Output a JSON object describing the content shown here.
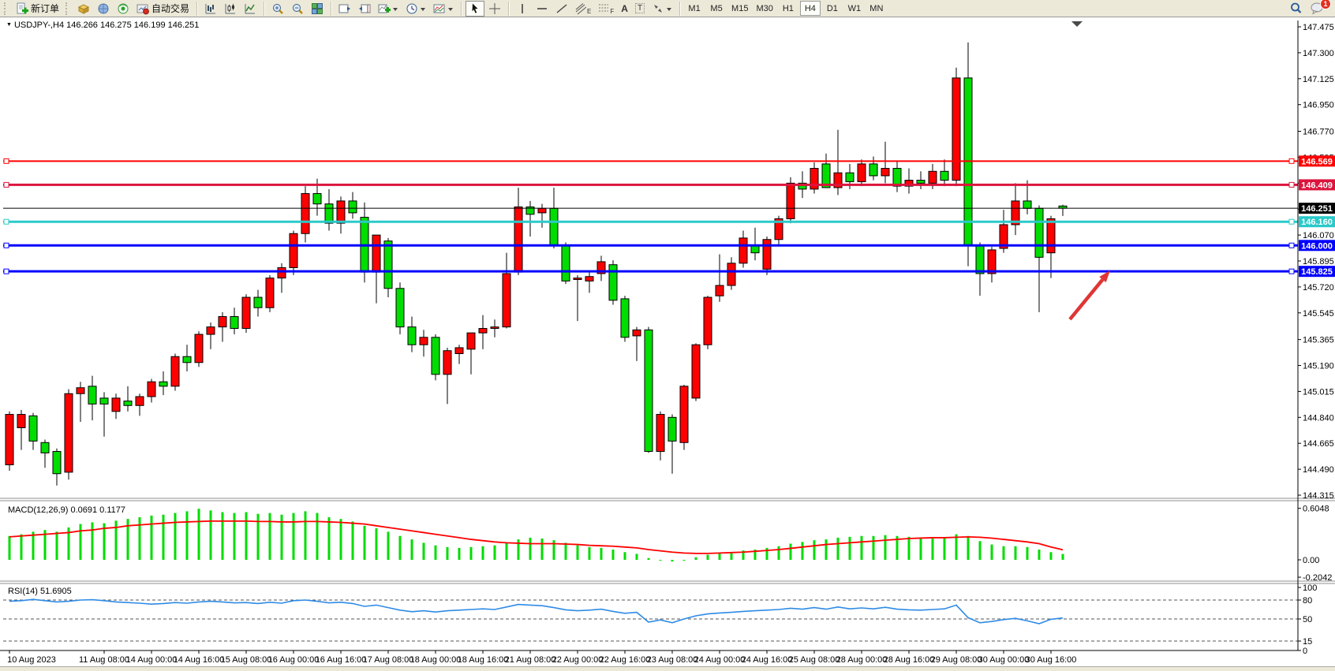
{
  "toolbar": {
    "new_order_label": "新订单",
    "autotrading_label": "自动交易",
    "timeframes": [
      "M1",
      "M5",
      "M15",
      "M30",
      "H1",
      "H4",
      "D1",
      "W1",
      "MN"
    ],
    "active_timeframe": "H4",
    "notification_count": "1",
    "glyphs": {
      "channel": "E",
      "fibo": "F",
      "text": "A",
      "label": "T"
    }
  },
  "chart_window": {
    "symbol_label": "USDJPY-,H4 146.266 146.275 146.199 146.251",
    "price_lines": [
      {
        "price": 146.569,
        "label": "146.569",
        "color": "#FF0000",
        "width": 2
      },
      {
        "price": 146.409,
        "label": "146.409",
        "color": "#DC143C",
        "width": 3
      },
      {
        "price": 146.251,
        "label": "146.251",
        "color": "#000000",
        "width": 1
      },
      {
        "price": 146.16,
        "label": "146.160",
        "color": "#2BC9C9",
        "width": 3
      },
      {
        "price": 146.0,
        "label": "146.000",
        "color": "#0000FF",
        "width": 3
      },
      {
        "price": 145.825,
        "label": "145.825",
        "color": "#0000FF",
        "width": 3
      }
    ],
    "y_ticks": [
      "147.475",
      "147.300",
      "147.125",
      "146.950",
      "146.770",
      "146.595",
      "146.420",
      "146.245",
      "146.070",
      "145.895",
      "145.720",
      "145.545",
      "145.365",
      "145.190",
      "145.015",
      "144.840",
      "144.665",
      "144.490",
      "144.315"
    ],
    "arrow": {
      "from": [
        1356,
        405
      ],
      "to": [
        1407,
        343
      ],
      "color": "#E03535"
    }
  },
  "chart_data": [
    {
      "type": "candlestick",
      "title": "USDJPY-,H4",
      "timeframe": "H4",
      "ylim": [
        144.315,
        147.475
      ],
      "up_color": "#FF0000",
      "down_color": "#00DD00",
      "x_tick_labels": [
        "10 Aug 2023",
        "11 Aug 08:00",
        "14 Aug 00:00",
        "14 Aug 16:00",
        "15 Aug 08:00",
        "16 Aug 00:00",
        "16 Aug 16:00",
        "17 Aug 08:00",
        "18 Aug 00:00",
        "18 Aug 16:00",
        "21 Aug 08:00",
        "22 Aug 00:00",
        "22 Aug 16:00",
        "23 Aug 08:00",
        "24 Aug 00:00",
        "24 Aug 16:00",
        "25 Aug 08:00",
        "28 Aug 00:00",
        "28 Aug 16:00",
        "29 Aug 08:00",
        "30 Aug 00:00",
        "30 Aug 16:00"
      ],
      "x_tick_indices": [
        0,
        8,
        12,
        16,
        20,
        24,
        28,
        32,
        36,
        40,
        44,
        48,
        52,
        56,
        60,
        64,
        68,
        72,
        76,
        80,
        84,
        88
      ],
      "ohlc": [
        [
          144.52,
          144.88,
          144.48,
          144.86
        ],
        [
          144.77,
          144.89,
          144.62,
          144.86
        ],
        [
          144.85,
          144.87,
          144.62,
          144.68
        ],
        [
          144.67,
          144.69,
          144.5,
          144.6
        ],
        [
          144.61,
          144.63,
          144.38,
          144.46
        ],
        [
          144.47,
          145.03,
          144.42,
          145.0
        ],
        [
          145.0,
          145.08,
          144.81,
          145.04
        ],
        [
          145.05,
          145.12,
          144.82,
          144.93
        ],
        [
          144.97,
          145.01,
          144.71,
          144.93
        ],
        [
          144.88,
          145.0,
          144.83,
          144.97
        ],
        [
          144.95,
          145.05,
          144.88,
          144.92
        ],
        [
          144.92,
          145.0,
          144.85,
          144.98
        ],
        [
          144.98,
          145.1,
          144.94,
          145.08
        ],
        [
          145.08,
          145.15,
          144.99,
          145.05
        ],
        [
          145.05,
          145.27,
          145.02,
          145.25
        ],
        [
          145.25,
          145.33,
          145.15,
          145.21
        ],
        [
          145.21,
          145.42,
          145.18,
          145.4
        ],
        [
          145.4,
          145.48,
          145.3,
          145.45
        ],
        [
          145.45,
          145.55,
          145.35,
          145.52
        ],
        [
          145.52,
          145.58,
          145.4,
          145.44
        ],
        [
          145.44,
          145.67,
          145.41,
          145.65
        ],
        [
          145.65,
          145.7,
          145.52,
          145.58
        ],
        [
          145.58,
          145.8,
          145.55,
          145.78
        ],
        [
          145.78,
          145.88,
          145.68,
          145.85
        ],
        [
          145.85,
          146.1,
          145.8,
          146.08
        ],
        [
          146.08,
          146.4,
          146.02,
          146.35
        ],
        [
          146.35,
          146.45,
          146.2,
          146.28
        ],
        [
          146.28,
          146.38,
          146.1,
          146.15
        ],
        [
          146.15,
          146.33,
          146.08,
          146.3
        ],
        [
          146.3,
          146.36,
          146.18,
          146.22
        ],
        [
          146.19,
          146.29,
          145.75,
          145.82
        ],
        [
          145.82,
          146.07,
          145.61,
          146.07
        ],
        [
          146.03,
          146.05,
          145.65,
          145.71
        ],
        [
          145.71,
          145.75,
          145.4,
          145.45
        ],
        [
          145.45,
          145.52,
          145.28,
          145.33
        ],
        [
          145.33,
          145.43,
          145.25,
          145.38
        ],
        [
          145.38,
          145.4,
          145.09,
          145.13
        ],
        [
          145.13,
          145.31,
          144.93,
          145.29
        ],
        [
          145.27,
          145.33,
          145.2,
          145.31
        ],
        [
          145.3,
          145.41,
          145.13,
          145.41
        ],
        [
          145.41,
          145.53,
          145.3,
          145.44
        ],
        [
          145.44,
          145.5,
          145.38,
          145.45
        ],
        [
          145.45,
          145.95,
          145.44,
          145.81
        ],
        [
          145.82,
          146.39,
          145.8,
          146.26
        ],
        [
          146.26,
          146.3,
          146.06,
          146.21
        ],
        [
          146.22,
          146.28,
          146.12,
          146.25
        ],
        [
          146.25,
          146.39,
          145.98,
          146.0
        ],
        [
          146.0,
          146.02,
          145.74,
          145.76
        ],
        [
          145.77,
          145.8,
          145.49,
          145.78
        ],
        [
          145.76,
          145.83,
          145.68,
          145.79
        ],
        [
          145.81,
          145.93,
          145.76,
          145.89
        ],
        [
          145.87,
          145.9,
          145.6,
          145.63
        ],
        [
          145.64,
          145.66,
          145.35,
          145.38
        ],
        [
          145.39,
          145.45,
          145.22,
          145.43
        ],
        [
          145.43,
          145.45,
          144.6,
          144.61
        ],
        [
          144.61,
          144.88,
          144.55,
          144.86
        ],
        [
          144.84,
          144.86,
          144.46,
          144.68
        ],
        [
          144.67,
          145.06,
          144.62,
          145.05
        ],
        [
          144.97,
          145.34,
          144.95,
          145.33
        ],
        [
          145.33,
          145.66,
          145.3,
          145.65
        ],
        [
          145.66,
          145.94,
          145.62,
          145.73
        ],
        [
          145.73,
          145.92,
          145.7,
          145.88
        ],
        [
          145.88,
          146.1,
          145.85,
          146.05
        ],
        [
          146.0,
          146.12,
          145.9,
          145.95
        ],
        [
          145.84,
          146.06,
          145.8,
          146.04
        ],
        [
          146.04,
          146.2,
          146.0,
          146.18
        ],
        [
          146.18,
          146.46,
          146.15,
          146.42
        ],
        [
          146.42,
          146.5,
          146.32,
          146.38
        ],
        [
          146.38,
          146.56,
          146.35,
          146.52
        ],
        [
          146.55,
          146.62,
          146.39,
          146.39
        ],
        [
          146.39,
          146.78,
          146.34,
          146.49
        ],
        [
          146.49,
          146.55,
          146.38,
          146.43
        ],
        [
          146.43,
          146.58,
          146.4,
          146.55
        ],
        [
          146.55,
          146.6,
          146.44,
          146.47
        ],
        [
          146.47,
          146.7,
          146.42,
          146.52
        ],
        [
          146.52,
          146.57,
          146.36,
          146.4
        ],
        [
          146.4,
          146.52,
          146.35,
          146.44
        ],
        [
          146.44,
          146.5,
          146.38,
          146.42
        ],
        [
          146.42,
          146.55,
          146.38,
          146.5
        ],
        [
          146.5,
          146.58,
          146.4,
          146.44
        ],
        [
          146.44,
          147.2,
          146.4,
          147.13
        ],
        [
          147.13,
          147.37,
          145.86,
          146.0
        ],
        [
          146.0,
          146.02,
          145.66,
          145.81
        ],
        [
          145.81,
          145.99,
          145.75,
          145.97
        ],
        [
          145.98,
          146.24,
          145.95,
          146.14
        ],
        [
          146.14,
          146.42,
          146.07,
          146.3
        ],
        [
          146.3,
          146.44,
          146.21,
          146.25
        ],
        [
          146.25,
          146.27,
          145.55,
          145.92
        ],
        [
          145.95,
          146.2,
          145.78,
          146.18
        ],
        [
          146.266,
          146.275,
          146.199,
          146.251
        ]
      ]
    },
    {
      "type": "bar",
      "title": "MACD(12,26,9)",
      "current": "0.0691 0.1177",
      "ylim": [
        -0.2042,
        0.6048
      ],
      "y_ticks": [
        "0.6048",
        "0.00",
        "-0.2042"
      ],
      "bar_color": "#00DD00",
      "signal_color": "#FF0000",
      "values": [
        0.28,
        0.3,
        0.33,
        0.35,
        0.33,
        0.38,
        0.42,
        0.44,
        0.43,
        0.46,
        0.48,
        0.5,
        0.52,
        0.53,
        0.55,
        0.57,
        0.6,
        0.58,
        0.56,
        0.55,
        0.56,
        0.54,
        0.55,
        0.53,
        0.55,
        0.57,
        0.55,
        0.5,
        0.48,
        0.45,
        0.4,
        0.37,
        0.33,
        0.28,
        0.24,
        0.2,
        0.17,
        0.15,
        0.14,
        0.15,
        0.16,
        0.17,
        0.2,
        0.24,
        0.26,
        0.25,
        0.23,
        0.2,
        0.17,
        0.15,
        0.14,
        0.12,
        0.09,
        0.07,
        0.02,
        0.0,
        -0.02,
        0.0,
        0.03,
        0.06,
        0.08,
        0.09,
        0.11,
        0.12,
        0.14,
        0.16,
        0.19,
        0.21,
        0.23,
        0.24,
        0.26,
        0.27,
        0.28,
        0.28,
        0.29,
        0.28,
        0.27,
        0.26,
        0.25,
        0.26,
        0.3,
        0.28,
        0.22,
        0.18,
        0.16,
        0.16,
        0.15,
        0.12,
        0.09,
        0.0691
      ],
      "signal": [
        0.27,
        0.28,
        0.29,
        0.3,
        0.31,
        0.32,
        0.34,
        0.35,
        0.37,
        0.38,
        0.4,
        0.41,
        0.42,
        0.43,
        0.44,
        0.445,
        0.45,
        0.455,
        0.455,
        0.455,
        0.455,
        0.45,
        0.45,
        0.445,
        0.445,
        0.45,
        0.45,
        0.445,
        0.44,
        0.43,
        0.42,
        0.4,
        0.38,
        0.36,
        0.34,
        0.32,
        0.3,
        0.28,
        0.26,
        0.24,
        0.225,
        0.21,
        0.2,
        0.195,
        0.19,
        0.19,
        0.19,
        0.185,
        0.18,
        0.17,
        0.165,
        0.16,
        0.15,
        0.14,
        0.12,
        0.105,
        0.09,
        0.08,
        0.075,
        0.075,
        0.08,
        0.085,
        0.09,
        0.1,
        0.11,
        0.12,
        0.135,
        0.15,
        0.165,
        0.18,
        0.19,
        0.2,
        0.21,
        0.22,
        0.23,
        0.24,
        0.25,
        0.255,
        0.26,
        0.26,
        0.265,
        0.27,
        0.265,
        0.255,
        0.24,
        0.225,
        0.21,
        0.19,
        0.15,
        0.1177
      ]
    },
    {
      "type": "line",
      "title": "RSI(14)",
      "current": "51.6905",
      "ylim": [
        0,
        100
      ],
      "levels": [
        80,
        50,
        15
      ],
      "y_ticks": [
        "100",
        "80",
        "50",
        "15",
        "0"
      ],
      "color": "#2E8BE6",
      "values": [
        78,
        79,
        81,
        79,
        77,
        78,
        80,
        80.5,
        79,
        77,
        76,
        75,
        73.5,
        74.5,
        76,
        75,
        77,
        78,
        77,
        75.5,
        76,
        74.5,
        76.5,
        75,
        79,
        80,
        78,
        75.5,
        76.5,
        74.5,
        70,
        72,
        68,
        64,
        61.5,
        63,
        61,
        63,
        64,
        65,
        66,
        65,
        69,
        73,
        72,
        71,
        68,
        64.5,
        63,
        64,
        65.5,
        62,
        59,
        60.5,
        45,
        48.5,
        44,
        50,
        55,
        58,
        59.5,
        60.5,
        62,
        63,
        64,
        65,
        67,
        65.5,
        68,
        65.5,
        69,
        66,
        67.5,
        66,
        68.5,
        65.5,
        64.5,
        64,
        65,
        66,
        72,
        52,
        44,
        46,
        49,
        51,
        47,
        42.5,
        49.5,
        51.69
      ]
    }
  ]
}
